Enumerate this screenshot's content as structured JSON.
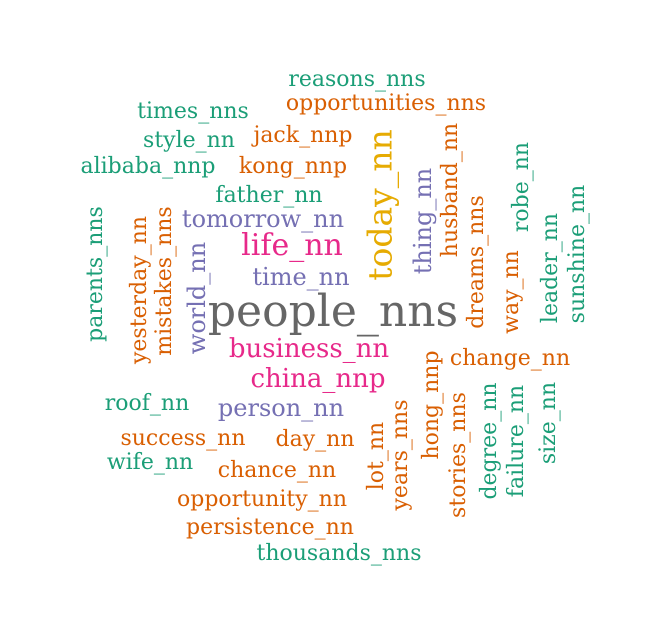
{
  "palette": {
    "green": "#1b9e77",
    "orange": "#d95f02",
    "purple": "#7570b3",
    "pink": "#e7298a",
    "gold": "#e6ab02",
    "gray": "#666666"
  },
  "words": [
    {
      "text": "people_nns",
      "color": "gray",
      "vertical": false
    },
    {
      "text": "today_nn",
      "color": "gold",
      "vertical": true
    },
    {
      "text": "life_nn",
      "color": "pink",
      "vertical": false
    },
    {
      "text": "business_nn",
      "color": "pink",
      "vertical": false
    },
    {
      "text": "china_nnp",
      "color": "pink",
      "vertical": false
    },
    {
      "text": "tomorrow_nn",
      "color": "purple",
      "vertical": false
    },
    {
      "text": "time_nn",
      "color": "purple",
      "vertical": false
    },
    {
      "text": "world_nn",
      "color": "purple",
      "vertical": true
    },
    {
      "text": "person_nn",
      "color": "purple",
      "vertical": false
    },
    {
      "text": "thing_nn",
      "color": "purple",
      "vertical": true
    },
    {
      "text": "reasons_nns",
      "color": "green",
      "vertical": false
    },
    {
      "text": "opportunities_nns",
      "color": "orange",
      "vertical": false
    },
    {
      "text": "times_nns",
      "color": "green",
      "vertical": false
    },
    {
      "text": "style_nn",
      "color": "green",
      "vertical": false
    },
    {
      "text": "jack_nnp",
      "color": "orange",
      "vertical": false
    },
    {
      "text": "alibaba_nnp",
      "color": "green",
      "vertical": false
    },
    {
      "text": "kong_nnp",
      "color": "orange",
      "vertical": false
    },
    {
      "text": "father_nn",
      "color": "green",
      "vertical": false
    },
    {
      "text": "parents_nns",
      "color": "green",
      "vertical": true
    },
    {
      "text": "yesterday_nn",
      "color": "orange",
      "vertical": true
    },
    {
      "text": "mistakes_nns",
      "color": "orange",
      "vertical": true
    },
    {
      "text": "husband_nn",
      "color": "orange",
      "vertical": true
    },
    {
      "text": "dreams_nns",
      "color": "orange",
      "vertical": true
    },
    {
      "text": "robe_nn",
      "color": "green",
      "vertical": true
    },
    {
      "text": "leader_nn",
      "color": "green",
      "vertical": true
    },
    {
      "text": "sunshine_nn",
      "color": "green",
      "vertical": true
    },
    {
      "text": "way_nn",
      "color": "orange",
      "vertical": true
    },
    {
      "text": "change_nn",
      "color": "orange",
      "vertical": false
    },
    {
      "text": "roof_nn",
      "color": "green",
      "vertical": false
    },
    {
      "text": "success_nn",
      "color": "orange",
      "vertical": false
    },
    {
      "text": "day_nn",
      "color": "orange",
      "vertical": false
    },
    {
      "text": "wife_nn",
      "color": "green",
      "vertical": false
    },
    {
      "text": "chance_nn",
      "color": "orange",
      "vertical": false
    },
    {
      "text": "opportunity_nn",
      "color": "orange",
      "vertical": false
    },
    {
      "text": "persistence_nn",
      "color": "orange",
      "vertical": false
    },
    {
      "text": "thousands_nns",
      "color": "green",
      "vertical": false
    },
    {
      "text": "lot_nn",
      "color": "orange",
      "vertical": true
    },
    {
      "text": "years_nns",
      "color": "orange",
      "vertical": true
    },
    {
      "text": "hong_nnp",
      "color": "orange",
      "vertical": true
    },
    {
      "text": "stories_nns",
      "color": "orange",
      "vertical": true
    },
    {
      "text": "degree_nn",
      "color": "green",
      "vertical": true
    },
    {
      "text": "failure_nn",
      "color": "green",
      "vertical": true
    },
    {
      "text": "size_nn",
      "color": "green",
      "vertical": true
    }
  ]
}
